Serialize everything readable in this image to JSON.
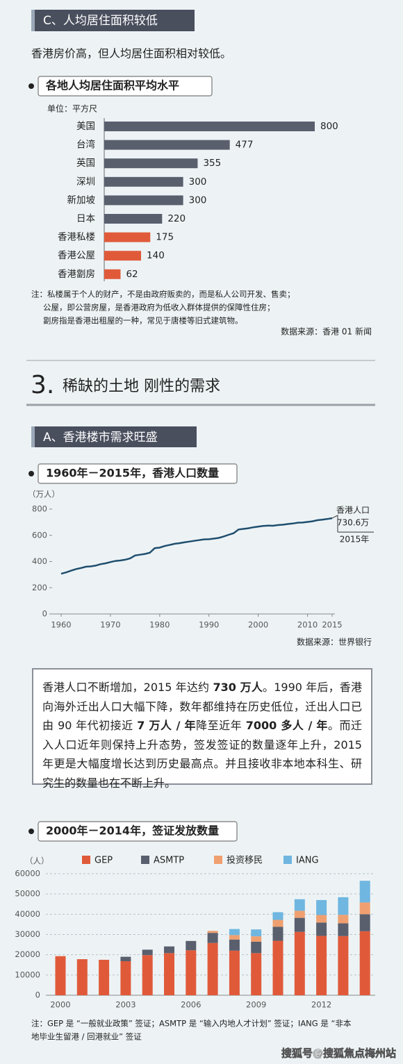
{
  "section_c": {
    "banner": "C、人均居住面积较低",
    "intro": "香港房价高，但人均居住面积相对较低。"
  },
  "chart_data": [
    {
      "type": "bar",
      "orientation": "horizontal",
      "title": "各地人均居住面积平均水平",
      "unit": "单位：平方尺",
      "categories": [
        "美国",
        "台湾",
        "英国",
        "深圳",
        "新加坡",
        "日本",
        "香港私楼",
        "香港公屋",
        "香港劏房"
      ],
      "values": [
        800,
        477,
        355,
        300,
        300,
        220,
        175,
        140,
        62
      ],
      "colors": [
        "#5a5f6e",
        "#5a5f6e",
        "#5a5f6e",
        "#5a5f6e",
        "#5a5f6e",
        "#5a5f6e",
        "#e05a3a",
        "#e05a3a",
        "#e05a3a"
      ],
      "xlim": [
        0,
        800
      ],
      "notes": [
        "注：私楼属于个人的财产，不是由政府贩卖的，而是私人公司开发、售卖；",
        "公屋，即公营房屋，是香港政府为低收入群体提供的保障性住房；",
        "劏房指是香港出租屋的一种，常见于唐楼等旧式建筑物。"
      ],
      "source": "数据来源：香港 01 新闻"
    },
    {
      "type": "line",
      "title": "1960年－2015年，香港人口数量",
      "y_unit": "（万人）",
      "color": "#1f4e6e",
      "x": [
        1960,
        1961,
        1962,
        1963,
        1964,
        1965,
        1966,
        1967,
        1968,
        1969,
        1970,
        1971,
        1972,
        1973,
        1974,
        1975,
        1976,
        1977,
        1978,
        1979,
        1980,
        1981,
        1982,
        1983,
        1984,
        1985,
        1986,
        1987,
        1988,
        1989,
        1990,
        1991,
        1992,
        1993,
        1994,
        1995,
        1996,
        1997,
        1998,
        1999,
        2000,
        2001,
        2002,
        2003,
        2004,
        2005,
        2006,
        2007,
        2008,
        2009,
        2010,
        2011,
        2012,
        2013,
        2014,
        2015
      ],
      "values": [
        307,
        317,
        330,
        342,
        350,
        360,
        363,
        369,
        380,
        386,
        396,
        404,
        408,
        414,
        424,
        446,
        452,
        458,
        467,
        502,
        506,
        518,
        526,
        535,
        540,
        546,
        552,
        558,
        563,
        569,
        570,
        575,
        580,
        591,
        604,
        616,
        644,
        649,
        654,
        661,
        666,
        671,
        674,
        673,
        678,
        681,
        686,
        690,
        696,
        697,
        702,
        707,
        715,
        719,
        724,
        730.6
      ],
      "xlim": [
        1960,
        2015
      ],
      "xticks": [
        1960,
        1970,
        1980,
        1990,
        2000,
        2010,
        2015
      ],
      "ylim": [
        0,
        800
      ],
      "yticks": [
        0,
        200,
        400,
        600,
        800
      ],
      "annotations": [
        "香港人口",
        "730.6万",
        "2015年"
      ],
      "source": "数据来源：世界银行"
    },
    {
      "type": "stacked_bar",
      "title": "2000年－2014年，签证发放数量",
      "y_unit": "（人）",
      "categories": [
        "2000",
        null,
        null,
        "2003",
        null,
        null,
        "2006",
        null,
        null,
        "2009",
        null,
        null,
        "2012",
        null,
        null
      ],
      "series": [
        {
          "name": "GEP",
          "color": "#e05a3a",
          "values": [
            19300,
            17800,
            17500,
            16800,
            19800,
            20800,
            22200,
            25800,
            22000,
            20800,
            26900,
            31300,
            29300,
            29200,
            31600
          ]
        },
        {
          "name": "ASMTP",
          "color": "#5a5f6e",
          "values": [
            0,
            0,
            0,
            2200,
            2700,
            3300,
            4600,
            5000,
            5500,
            5600,
            6900,
            6900,
            6600,
            6300,
            8400
          ]
        },
        {
          "name": "投资移民",
          "color": "#f0a070",
          "values": [
            0,
            0,
            0,
            0,
            0,
            0,
            0,
            1000,
            2200,
            2700,
            3400,
            3500,
            3700,
            4200,
            5800
          ]
        },
        {
          "name": "IANG",
          "color": "#6fb6e0",
          "values": [
            0,
            0,
            0,
            0,
            0,
            0,
            0,
            0,
            3000,
            3400,
            3800,
            5700,
            7400,
            8700,
            10700
          ]
        }
      ],
      "ylim": [
        0,
        60000
      ],
      "yticks": [
        0,
        10000,
        20000,
        30000,
        40000,
        50000,
        60000
      ],
      "grid": true,
      "notes": [
        "注：GEP 是 “一般就业政策” 签证；ASMTP 是 “输入内地人才计划” 签证；IANG 是 “非本",
        "地毕业生留港 / 回港就业” 签证"
      ]
    }
  ],
  "section_3": {
    "number": "3.",
    "title": "稀缺的土地 刚性的需求",
    "banner": "A、香港楼市需求旺盛"
  },
  "text_box": [
    {
      "text": "香港人口不断增加，2015 年达约 ",
      "bold": false
    },
    {
      "text": "730 万人",
      "bold": true
    },
    {
      "text": "。1990 年后，香港向海外迁出人口大幅下降，数年都维持在历史低位，迁出人口已由 90 年代初接近 ",
      "bold": false
    },
    {
      "text": "7 万人 / 年",
      "bold": true
    },
    {
      "text": "降至近年 ",
      "bold": false
    },
    {
      "text": "7000 多人 / 年",
      "bold": true
    },
    {
      "text": "。而迁入人口近年则保持上升态势，签发签证的数量逐年上升，2015 年更是大幅度增长达到历史最高点。并且接收非本地本科生、研究生的数量也在不断上升。",
      "bold": false
    }
  ],
  "watermark": "搜狐号@搜狐焦点梅州站"
}
